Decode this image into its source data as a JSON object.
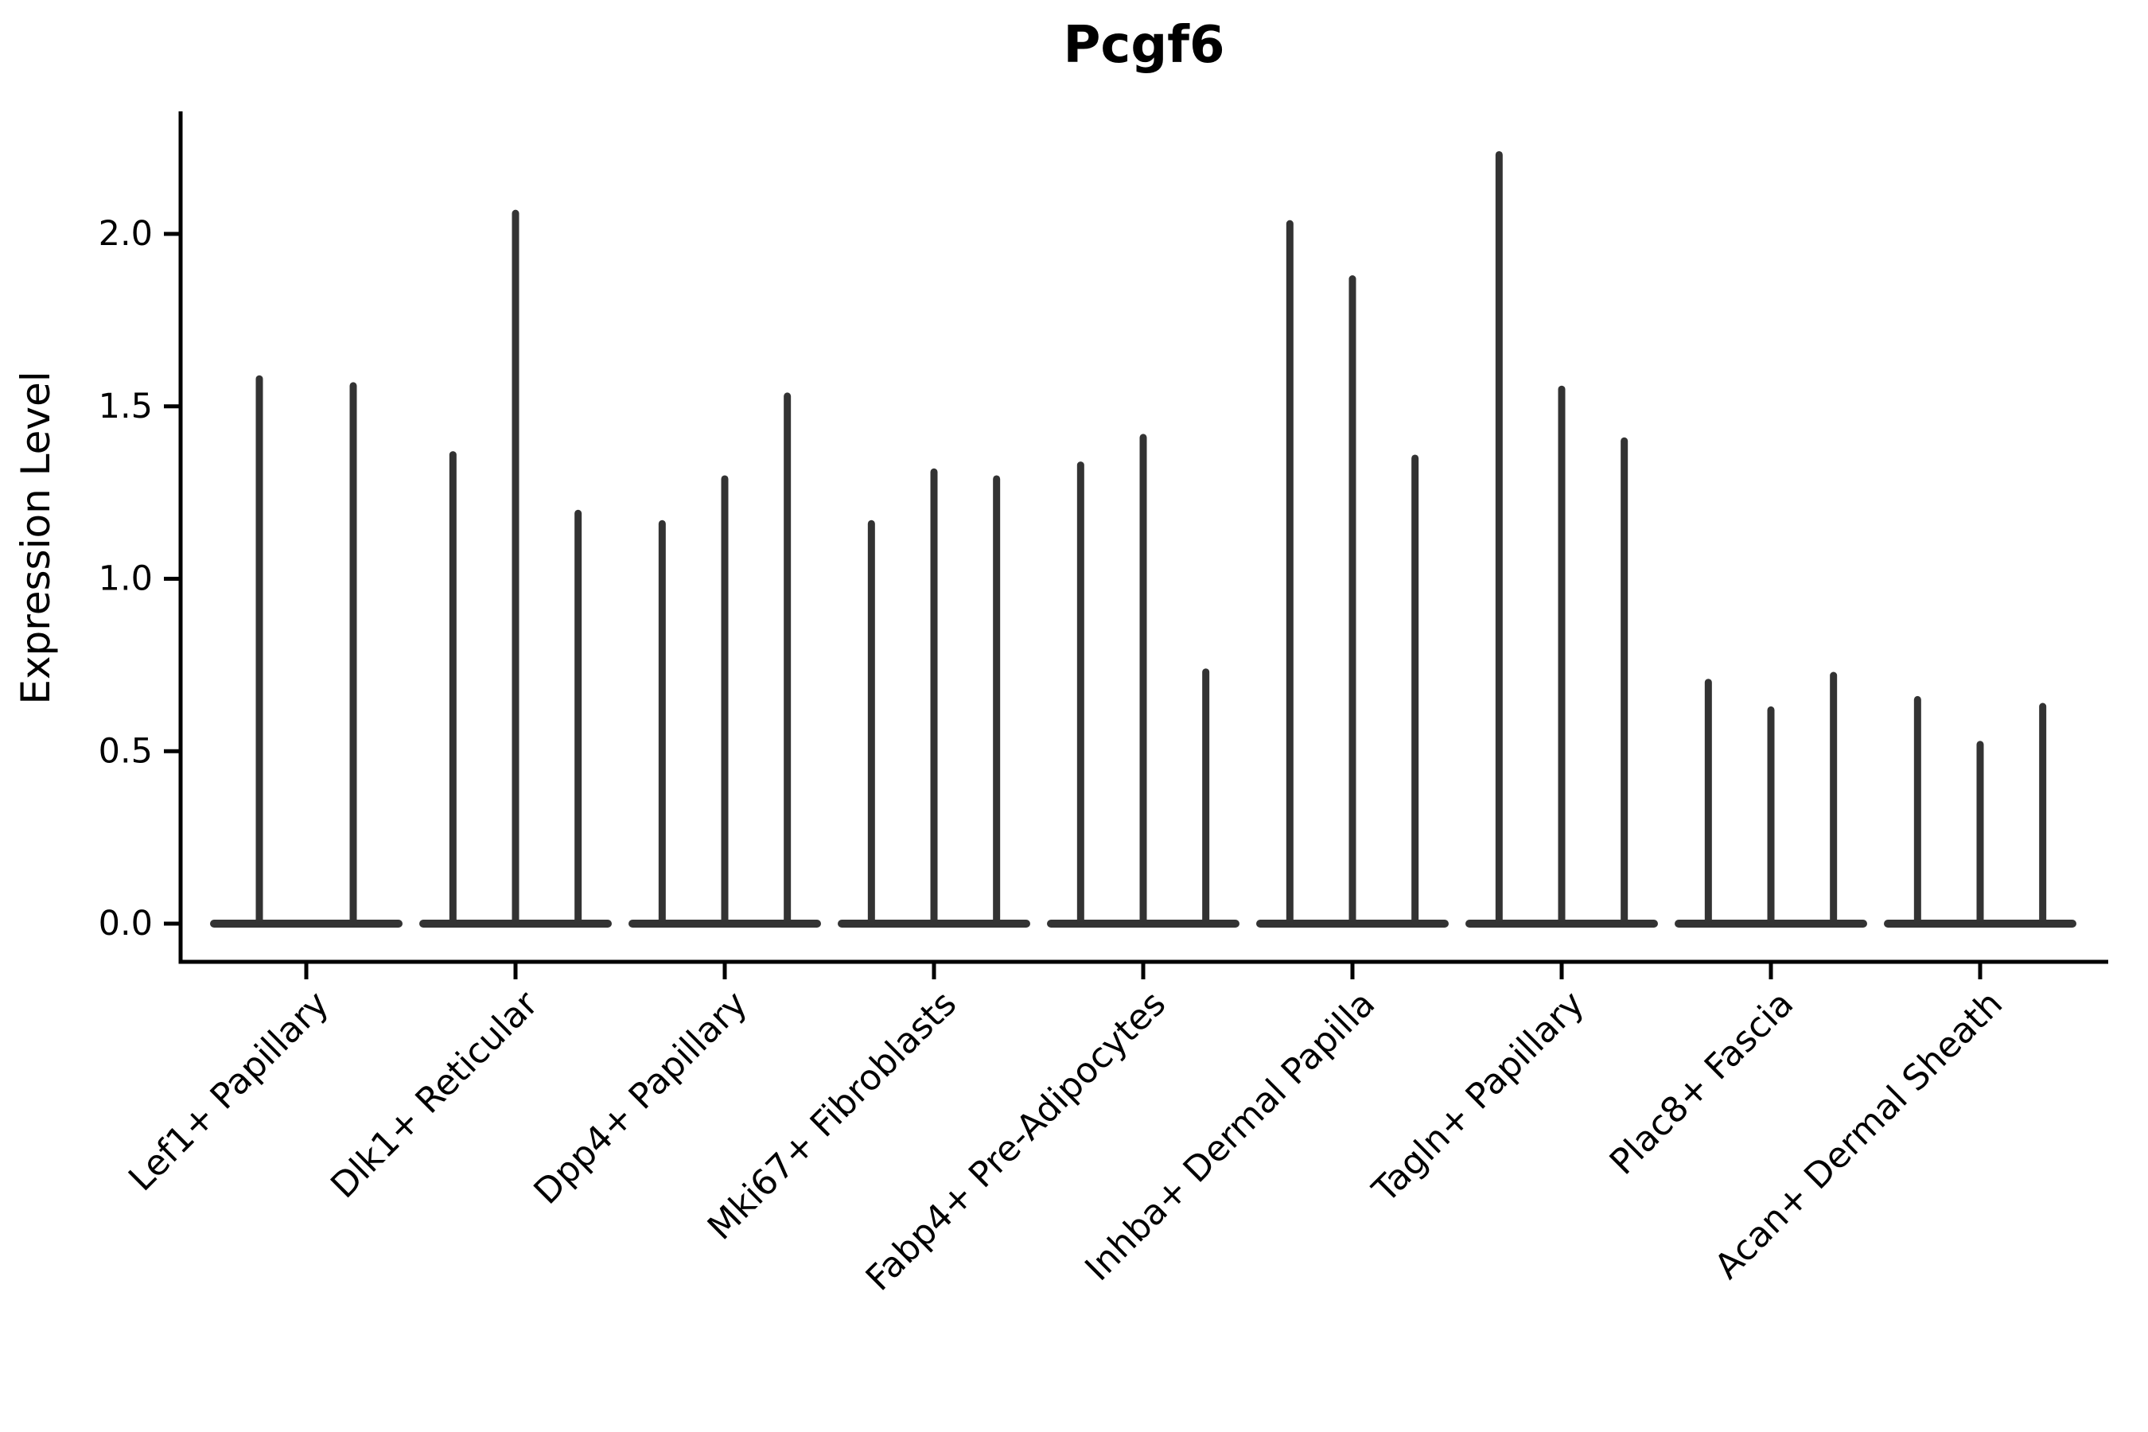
{
  "chart_data": {
    "type": "violin",
    "title": "Pcgf6",
    "xlabel": "",
    "ylabel": "Expression Level",
    "ylim": [
      -0.11,
      2.35
    ],
    "yticks": [
      0.0,
      0.5,
      1.0,
      1.5,
      2.0
    ],
    "yticklabels": [
      "0.0",
      "0.5",
      "1.0",
      "1.5",
      "2.0"
    ],
    "grid": false,
    "legend_position": "none",
    "violin_style": "thin spikes rising from a wide flat base at expression 0 (expression concentrated at zero)",
    "categories": [
      "Lef1+ Papillary",
      "Dlk1+ Reticular",
      "Dpp4+ Papillary",
      "Mki67+ Fibroblasts",
      "Fabp4+ Pre-Adipocytes",
      "Inhba+ Dermal Papilla",
      "Tagln+ Papillary",
      "Plac8+ Fascia",
      "Acan+ Dermal Sheath"
    ],
    "series": [
      {
        "category": "Lef1+ Papillary",
        "spike_maxima": [
          1.59,
          1.57
        ]
      },
      {
        "category": "Dlk1+ Reticular",
        "spike_maxima": [
          1.37,
          2.07,
          1.2
        ]
      },
      {
        "category": "Dpp4+ Papillary",
        "spike_maxima": [
          1.17,
          1.3,
          1.54
        ]
      },
      {
        "category": "Mki67+ Fibroblasts",
        "spike_maxima": [
          1.17,
          1.32,
          1.3
        ]
      },
      {
        "category": "Fabp4+ Pre-Adipocytes",
        "spike_maxima": [
          1.34,
          1.42,
          0.74
        ]
      },
      {
        "category": "Inhba+ Dermal Papilla",
        "spike_maxima": [
          2.04,
          1.88,
          1.36
        ]
      },
      {
        "category": "Tagln+ Papillary",
        "spike_maxima": [
          2.24,
          1.56,
          1.41
        ]
      },
      {
        "category": "Plac8+ Fascia",
        "spike_maxima": [
          0.71,
          0.63,
          0.73
        ]
      },
      {
        "category": "Acan+ Dermal Sheath",
        "spike_maxima": [
          0.66,
          0.53,
          0.64
        ]
      }
    ],
    "colors": {
      "violin": "#333333",
      "axis": "#000000",
      "text": "#000000",
      "background": "#ffffff"
    }
  }
}
